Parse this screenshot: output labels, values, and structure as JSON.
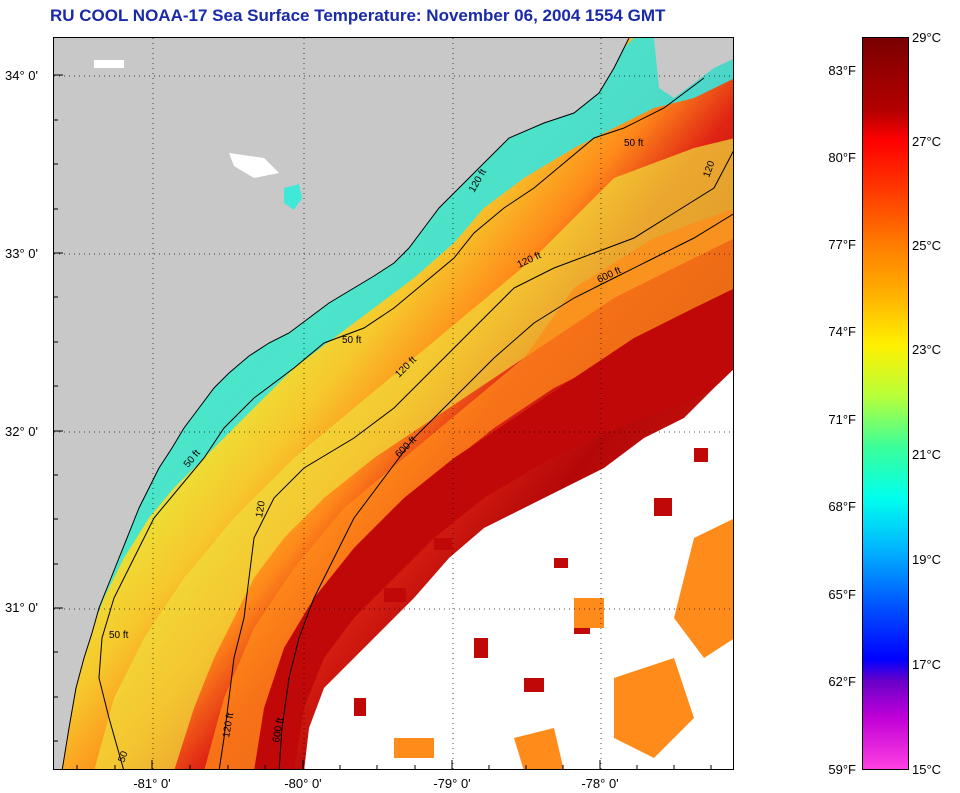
{
  "title": "RU COOL  NOAA-17  Sea Surface Temperature:  November 06, 2004 1554 GMT",
  "latitude_labels": [
    "34° 0'",
    "33° 0'",
    "32° 0'",
    "31° 0'"
  ],
  "longitude_labels": [
    "-81° 0'",
    "-80° 0'",
    "-79° 0'",
    "-78° 0'"
  ],
  "isobath_labels": {
    "i50a": "50 ft",
    "i50b": "50 ft",
    "i50c": "50 ft",
    "i50d": "50 ft",
    "i50e": "50",
    "i120a": "120 ft",
    "i120b": "120 ft",
    "i120c": "120",
    "i120d": "120 ft",
    "i120e": "120 ft",
    "i120f": "120",
    "i600a": "600 ft",
    "i600b": "600 ft",
    "i600c": "600 ft"
  },
  "colorbar": {
    "fahrenheit": [
      "83°F",
      "80°F",
      "77°F",
      "74°F",
      "71°F",
      "68°F",
      "65°F",
      "62°F",
      "59°F"
    ],
    "celsius": [
      "29°C",
      "27°C",
      "25°C",
      "23°C",
      "21°C",
      "19°C",
      "17°C",
      "15°C"
    ]
  },
  "colors": {
    "land": "#c8c8c8",
    "cloud": "#ffffff",
    "nearshore": "#38e6d8",
    "shelf": "#f2e23a",
    "outer_shelf": "#ff8c1a",
    "gulf_stream": "#c80a0a",
    "title": "#1a2aa8"
  }
}
